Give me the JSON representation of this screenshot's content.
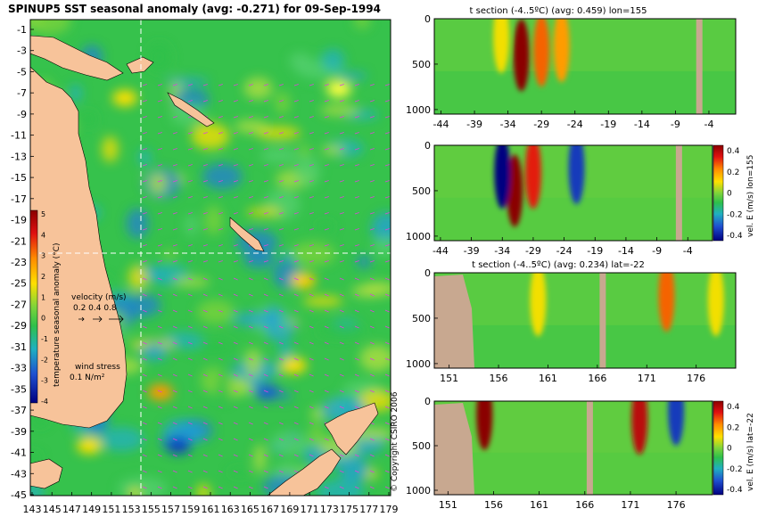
{
  "map": {
    "title": "SPINUP5 SST seasonal anomaly (avg: -0.271) for 09-Sep-1994",
    "y_ticks": [
      "-1",
      "-3",
      "-5",
      "-7",
      "-9",
      "-11",
      "-13",
      "-15",
      "-17",
      "-19",
      "-21",
      "-23",
      "-25",
      "-27",
      "-29",
      "-31",
      "-33",
      "-35",
      "-37",
      "-39",
      "-41",
      "-43",
      "-45"
    ],
    "x_ticks": [
      "143",
      "145",
      "147",
      "149",
      "151",
      "153",
      "155",
      "157",
      "159",
      "161",
      "163",
      "165",
      "167",
      "169",
      "171",
      "173",
      "175",
      "177",
      "179"
    ],
    "colorbar_label": "temperature seasonal anomaly (°C)",
    "colorbar_ticks": [
      "5",
      "4",
      "3",
      "2",
      "1",
      "0",
      "-1",
      "-2",
      "-3",
      "-4"
    ],
    "velocity_label": "velocity (m/s)",
    "velocity_scale": "0.2 0.4 0.8",
    "windstress_label": "wind stress",
    "windstress_scale": "0.1 N/m²",
    "copyright": "© Copyright CSIRO 2006",
    "section_lon": 155,
    "section_lat": -22,
    "colors": {
      "land": "#f7c39a",
      "water_mean": "#33c24a",
      "arrows": "#e040e0"
    }
  },
  "chart_data": [
    {
      "type": "heatmap",
      "title": "t section (-4..5ºC) (avg: 0.459) lon=155",
      "xlabel": "",
      "ylabel": "",
      "x_ticks": [
        "-44",
        "-39",
        "-34",
        "-29",
        "-24",
        "-19",
        "-14",
        "-9",
        "-4"
      ],
      "y_ticks": [
        "0",
        "500",
        "1000"
      ],
      "xlim": [
        -45,
        0
      ],
      "ylim": [
        1050,
        0
      ],
      "hotspots": [
        {
          "x": -32,
          "depth": 400,
          "v": 5
        },
        {
          "x": -29,
          "depth": 350,
          "v": 3.5
        },
        {
          "x": -26,
          "depth": 300,
          "v": 3
        },
        {
          "x": -35,
          "depth": 200,
          "v": 2
        }
      ],
      "land_columns": [
        -5.5
      ]
    },
    {
      "type": "heatmap",
      "title": "",
      "xlabel": "",
      "ylabel": "vel. E (m/s) lon=155",
      "x_ticks": [
        "-44",
        "-39",
        "-34",
        "-29",
        "-24",
        "-19",
        "-14",
        "-9",
        "-4"
      ],
      "y_ticks": [
        "0",
        "500",
        "1000"
      ],
      "xlim": [
        -45,
        0
      ],
      "ylim": [
        1050,
        0
      ],
      "colorbar_ticks": [
        "0.4",
        "0.2",
        "0",
        "-0.2",
        "-0.4"
      ],
      "hotspots": [
        {
          "x": -32,
          "depth": 500,
          "v": 0.45
        },
        {
          "x": -34,
          "depth": 300,
          "v": -0.45
        },
        {
          "x": -29,
          "depth": 300,
          "v": 0.35
        },
        {
          "x": -22,
          "depth": 250,
          "v": -0.35
        }
      ],
      "land_columns": [
        -5.5
      ]
    },
    {
      "type": "heatmap",
      "title": "t section (-4..5ºC) (avg: 0.234) lat=-22",
      "xlabel": "",
      "ylabel": "",
      "x_ticks": [
        "151",
        "156",
        "161",
        "166",
        "171",
        "176"
      ],
      "y_ticks": [
        "0",
        "500",
        "1000"
      ],
      "xlim": [
        149.5,
        180
      ],
      "ylim": [
        1050,
        0
      ],
      "hotspots": [
        {
          "x": 173,
          "depth": 250,
          "v": 3.5
        },
        {
          "x": 160,
          "depth": 300,
          "v": 2
        },
        {
          "x": 178,
          "depth": 300,
          "v": 2
        }
      ],
      "land_columns": [
        166.5
      ]
    },
    {
      "type": "heatmap",
      "title": "",
      "xlabel": "",
      "ylabel": "vel. E (m/s) lat=-22",
      "x_ticks": [
        "151",
        "156",
        "161",
        "166",
        "171",
        "176"
      ],
      "y_ticks": [
        "0",
        "500",
        "1000"
      ],
      "xlim": [
        149.5,
        180
      ],
      "ylim": [
        1050,
        0
      ],
      "colorbar_ticks": [
        "0.4",
        "0.2",
        "0",
        "-0.2",
        "-0.4"
      ],
      "hotspots": [
        {
          "x": 155,
          "depth": 150,
          "v": 0.45
        },
        {
          "x": 172,
          "depth": 200,
          "v": 0.4
        },
        {
          "x": 176,
          "depth": 100,
          "v": -0.35
        }
      ],
      "land_columns": [
        166.5
      ]
    }
  ]
}
